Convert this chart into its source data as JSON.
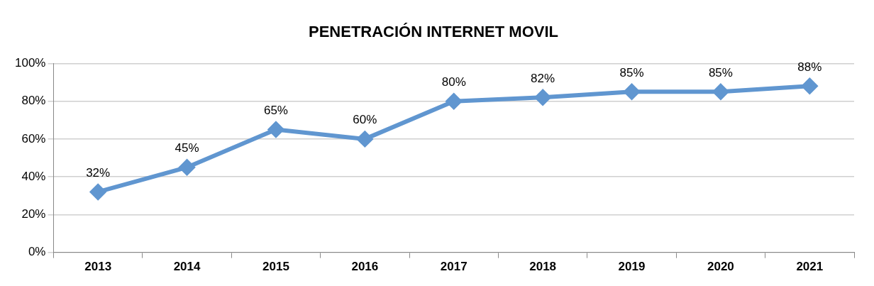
{
  "chart_data": {
    "type": "line",
    "title": "PENETRACIÓN INTERNET MOVIL",
    "categories": [
      "2013",
      "2014",
      "2015",
      "2016",
      "2017",
      "2018",
      "2019",
      "2020",
      "2021"
    ],
    "series": [
      {
        "color": "#6096d0",
        "values": [
          32,
          45,
          65,
          60,
          80,
          82,
          85,
          85,
          88
        ],
        "value_labels": [
          "32%",
          "45%",
          "65%",
          "60%",
          "80%",
          "82%",
          "85%",
          "85%",
          "88%"
        ]
      }
    ],
    "ylim": [
      0,
      100
    ],
    "yticks": [
      {
        "value": 0,
        "label": "0%"
      },
      {
        "value": 20,
        "label": "20%"
      },
      {
        "value": 40,
        "label": "40%"
      },
      {
        "value": 60,
        "label": "60%"
      },
      {
        "value": 80,
        "label": "80%"
      },
      {
        "value": 100,
        "label": "100%"
      }
    ],
    "grid": "y",
    "legend": false,
    "marker": "diamond",
    "line_style": "solid"
  }
}
